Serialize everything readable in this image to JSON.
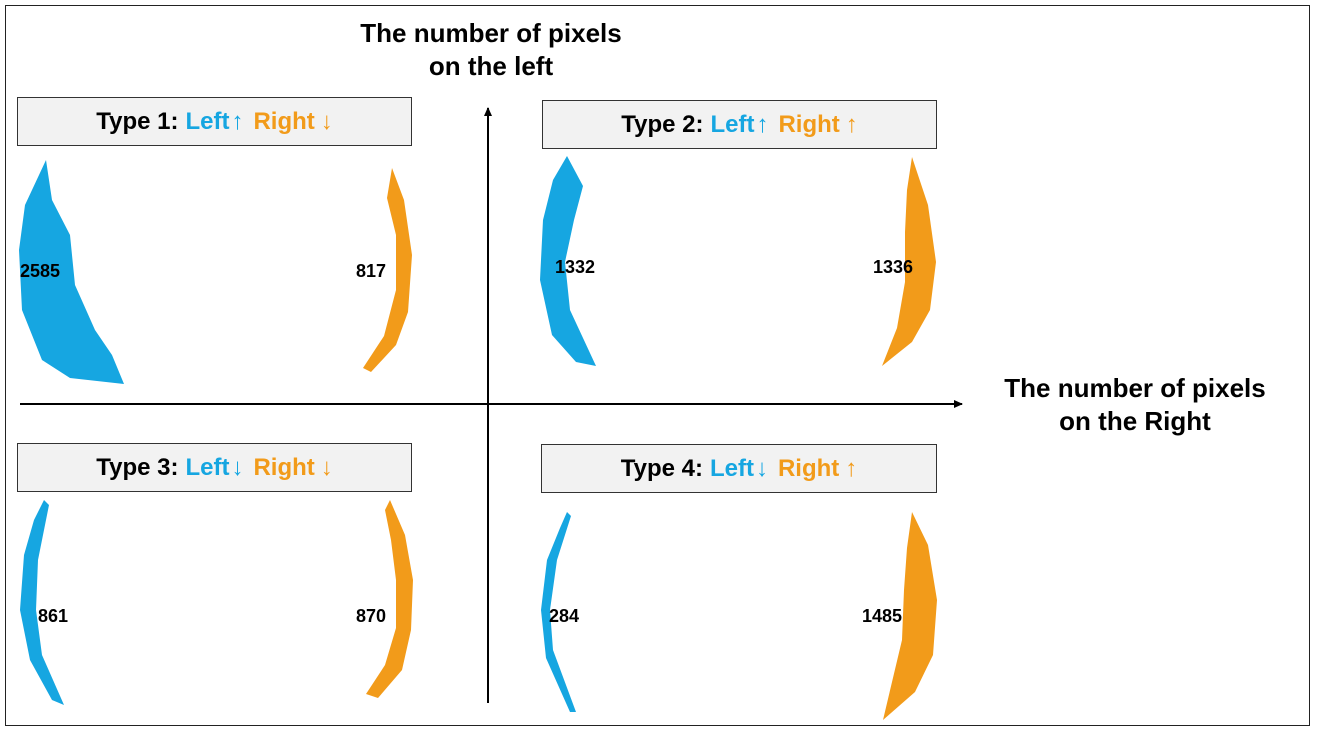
{
  "axes": {
    "y_title_lines": [
      "The number of pixels",
      "on the left"
    ],
    "x_title_lines": [
      "The number of pixels",
      "on the Right"
    ]
  },
  "colors": {
    "left": "#16a6e1",
    "right": "#f29b1a",
    "box_bg": "#f2f2f2"
  },
  "quadrants": [
    {
      "prefix": "Type 1:",
      "left_label": "Left",
      "left_arrow": "↑",
      "right_label": "Right",
      "right_arrow": "↓",
      "left_count": "2585",
      "right_count": "817"
    },
    {
      "prefix": "Type 2:",
      "left_label": "Left",
      "left_arrow": "↑",
      "right_label": "Right",
      "right_arrow": "↑",
      "left_count": "1332",
      "right_count": "1336"
    },
    {
      "prefix": "Type 3:",
      "left_label": "Left",
      "left_arrow": "↓",
      "right_label": "Right",
      "right_arrow": "↓",
      "left_count": "861",
      "right_count": "870"
    },
    {
      "prefix": "Type 4:",
      "left_label": "Left",
      "left_arrow": "↓",
      "right_label": "Right",
      "right_arrow": "↑",
      "left_count": "284",
      "right_count": "1485"
    }
  ]
}
